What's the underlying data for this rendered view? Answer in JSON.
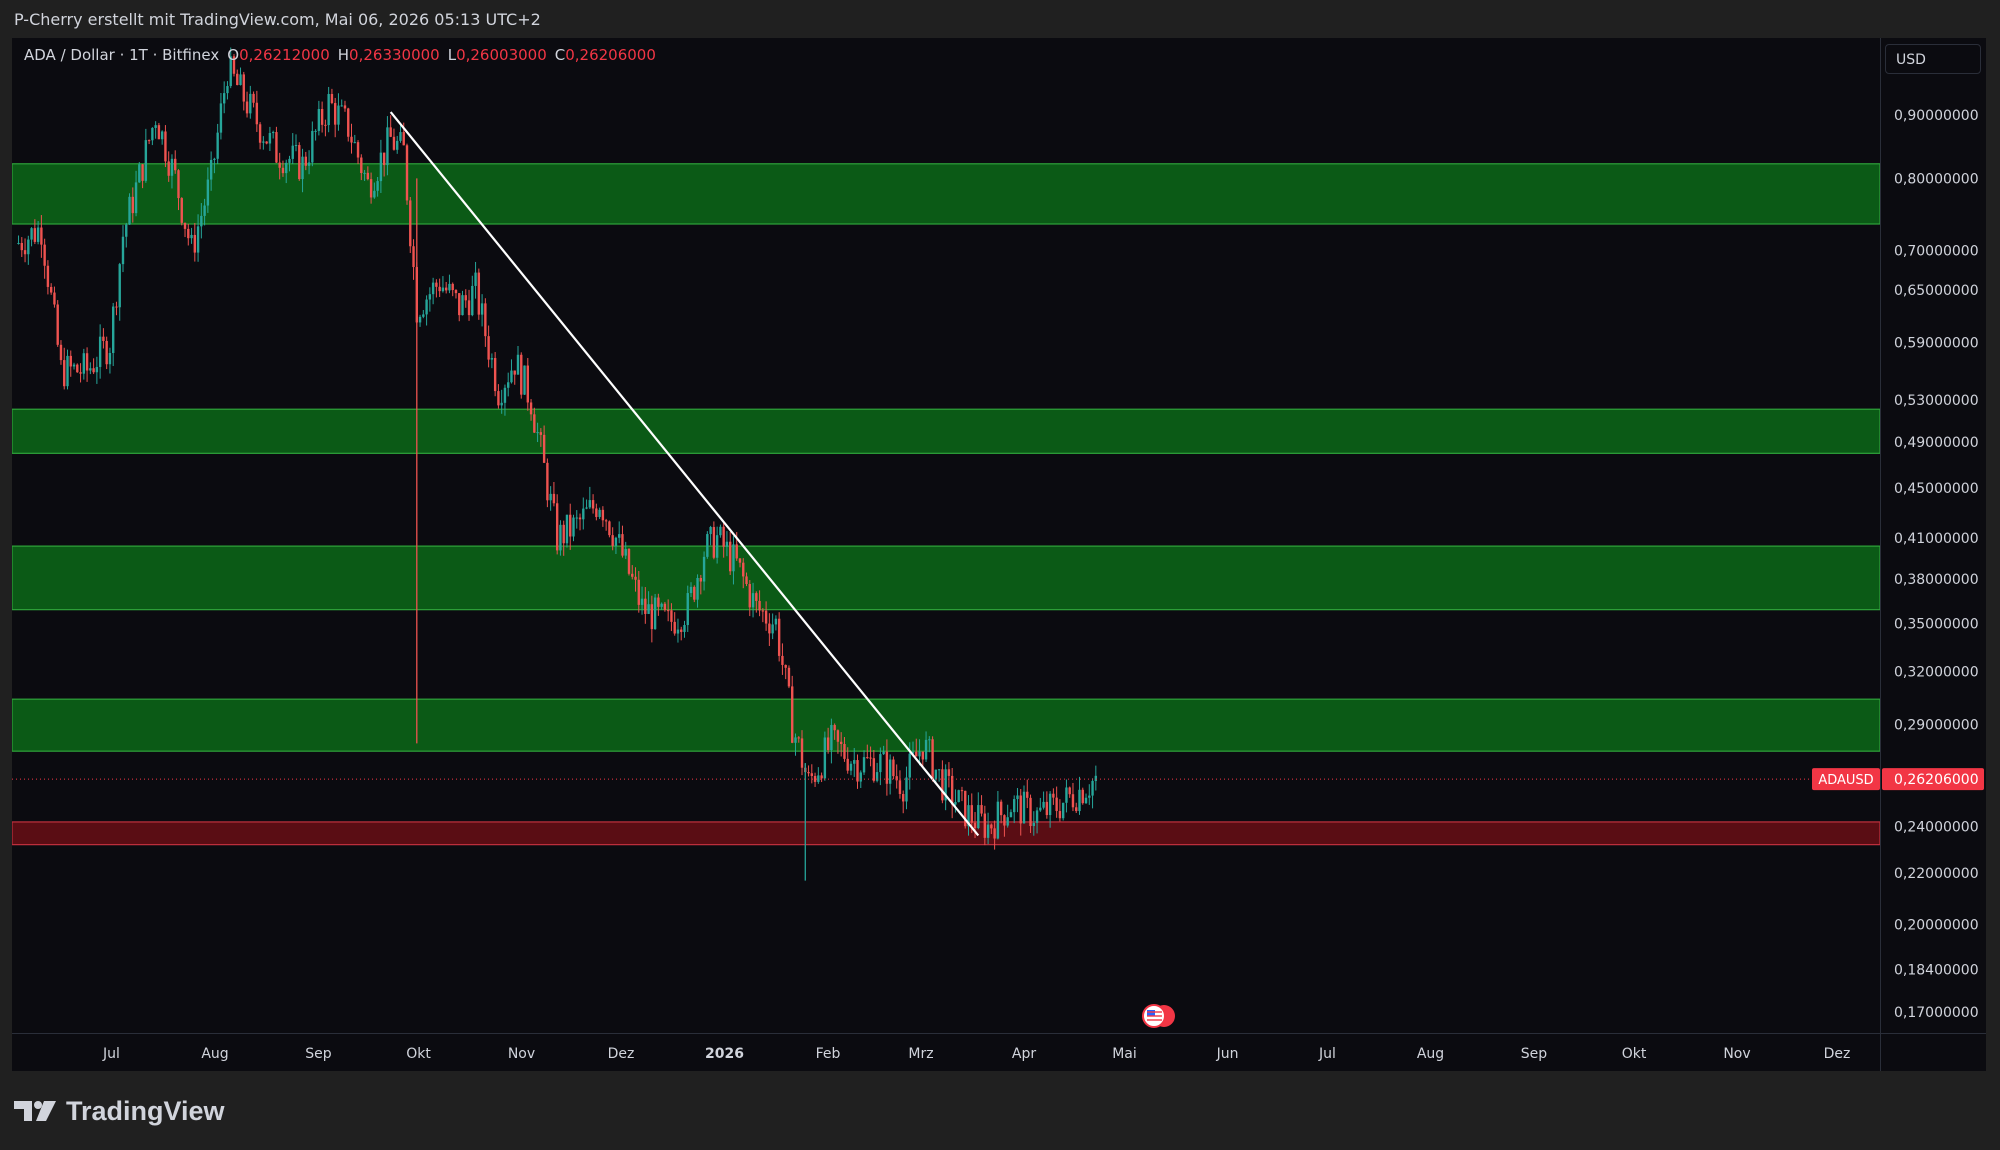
{
  "header": {
    "attribution": "P-Cherry erstellt mit TradingView.com, Mai 06, 2026 05:13 UTC+2"
  },
  "legend": {
    "symbol": "ADA / Dollar · 1T · Bitfinex",
    "open_label": "O",
    "open": "0,26212000",
    "high_label": "H",
    "high": "0,26330000",
    "low_label": "L",
    "low": "0,26003000",
    "close_label": "C",
    "close": "0,26206000"
  },
  "currency_button": "USD",
  "brand": {
    "name": "TradingView"
  },
  "colors": {
    "background": "#0b0b10",
    "up": "#26a69a",
    "down": "#ef5350",
    "zone": "#0b5a16",
    "red_zone": "#5a0d14",
    "price_tag": "#f23645",
    "trendline": "#ffffff"
  },
  "chart_data": {
    "type": "candlestick",
    "symbol": "ADAUSD",
    "interval": "1T",
    "scale": "log",
    "grid": false,
    "x_ticks": [
      "Jul",
      "Aug",
      "Sep",
      "Okt",
      "Nov",
      "Dez",
      "2026",
      "Feb",
      "Mrz",
      "Apr",
      "Mai",
      "Jun",
      "Jul",
      "Aug",
      "Sep",
      "Okt",
      "Nov",
      "Dez"
    ],
    "x_tick_bold": "2026",
    "y_ticks": [
      "0,90000000",
      "0,80000000",
      "0,70000000",
      "0,65000000",
      "0,59000000",
      "0,53000000",
      "0,49000000",
      "0,45000000",
      "0,41000000",
      "0,38000000",
      "0,35000000",
      "0,32000000",
      "0,29000000",
      "0,24000000",
      "0,22000000",
      "0,20000000",
      "0,18400000",
      "0,17000000"
    ],
    "y_tick_values": [
      0.9,
      0.8,
      0.7,
      0.65,
      0.59,
      0.53,
      0.49,
      0.45,
      0.41,
      0.38,
      0.35,
      0.32,
      0.29,
      0.24,
      0.22,
      0.2,
      0.184,
      0.17
    ],
    "last_price": {
      "label": "ADAUSD",
      "value": "0,26206000",
      "price": 0.26206
    },
    "support_zones": [
      {
        "low": 0.735,
        "high": 0.822,
        "color": "green"
      },
      {
        "low": 0.48,
        "high": 0.521,
        "color": "green"
      },
      {
        "low": 0.359,
        "high": 0.404,
        "color": "green"
      },
      {
        "low": 0.276,
        "high": 0.304,
        "color": "green"
      },
      {
        "low": 0.232,
        "high": 0.242,
        "color": "red"
      }
    ],
    "trendline": {
      "from": {
        "date": "2025-10-02",
        "price": 0.905
      },
      "to": {
        "date": "2026-03-31",
        "price": 0.236
      }
    },
    "path_points": [
      [
        "2025-06-10",
        0.71
      ],
      [
        "2025-06-17",
        0.73
      ],
      [
        "2025-06-23",
        0.56
      ],
      [
        "2025-07-01",
        0.56
      ],
      [
        "2025-07-08",
        0.59
      ],
      [
        "2025-07-12",
        0.72
      ],
      [
        "2025-07-18",
        0.82
      ],
      [
        "2025-07-22",
        0.9
      ],
      [
        "2025-07-28",
        0.8
      ],
      [
        "2025-08-02",
        0.7
      ],
      [
        "2025-08-08",
        0.8
      ],
      [
        "2025-08-13",
        0.98
      ],
      [
        "2025-08-18",
        0.93
      ],
      [
        "2025-08-23",
        0.88
      ],
      [
        "2025-08-28",
        0.84
      ],
      [
        "2025-09-05",
        0.82
      ],
      [
        "2025-09-13",
        0.92
      ],
      [
        "2025-09-19",
        0.88
      ],
      [
        "2025-09-25",
        0.79
      ],
      [
        "2025-10-02",
        0.86
      ],
      [
        "2025-10-06",
        0.84
      ],
      [
        "2025-10-10",
        0.63
      ],
      [
        "2025-10-17",
        0.66
      ],
      [
        "2025-10-23",
        0.63
      ],
      [
        "2025-10-28",
        0.65
      ],
      [
        "2025-11-04",
        0.54
      ],
      [
        "2025-11-09",
        0.57
      ],
      [
        "2025-11-14",
        0.53
      ],
      [
        "2025-11-22",
        0.41
      ],
      [
        "2025-11-28",
        0.42
      ],
      [
        "2025-12-05",
        0.44
      ],
      [
        "2025-12-10",
        0.41
      ],
      [
        "2025-12-18",
        0.36
      ],
      [
        "2025-12-26",
        0.35
      ],
      [
        "2026-01-01",
        0.36
      ],
      [
        "2026-01-06",
        0.4
      ],
      [
        "2026-01-10",
        0.41
      ],
      [
        "2026-01-16",
        0.39
      ],
      [
        "2026-01-22",
        0.36
      ],
      [
        "2026-01-28",
        0.35
      ],
      [
        "2026-02-02",
        0.29
      ],
      [
        "2026-02-07",
        0.26
      ],
      [
        "2026-02-14",
        0.28
      ],
      [
        "2026-02-22",
        0.27
      ],
      [
        "2026-03-01",
        0.27
      ],
      [
        "2026-03-08",
        0.26
      ],
      [
        "2026-03-14",
        0.28
      ],
      [
        "2026-03-20",
        0.26
      ],
      [
        "2026-03-28",
        0.245
      ],
      [
        "2026-04-03",
        0.24
      ],
      [
        "2026-04-10",
        0.25
      ],
      [
        "2026-04-18",
        0.245
      ],
      [
        "2026-04-25",
        0.25
      ],
      [
        "2026-05-06",
        0.262
      ]
    ],
    "wicks": [
      {
        "date": "2025-10-10",
        "low": 0.28,
        "high": 0.8
      },
      {
        "date": "2026-02-06",
        "low": 0.217,
        "high": 0.27
      }
    ]
  }
}
